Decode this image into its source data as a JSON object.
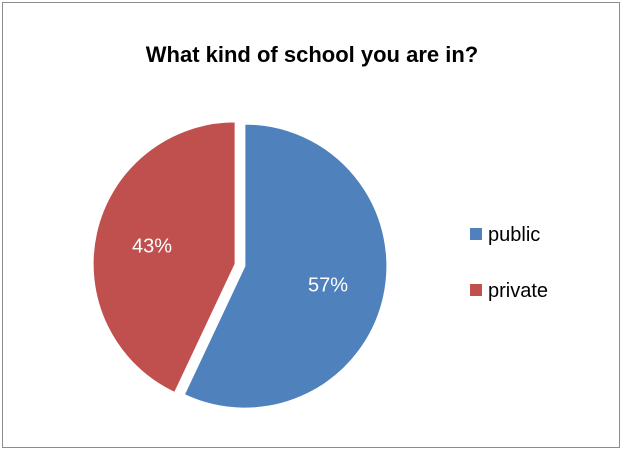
{
  "chart_data": {
    "type": "pie",
    "title": "What kind of school you are in?",
    "categories": [
      "public",
      "private"
    ],
    "values": [
      57,
      43
    ],
    "data_labels": [
      "57%",
      "43%"
    ],
    "colors": [
      "#4f81bd",
      "#c0504d"
    ],
    "exploded": true,
    "legend": {
      "position": "right",
      "entries": [
        "public",
        "private"
      ]
    }
  }
}
